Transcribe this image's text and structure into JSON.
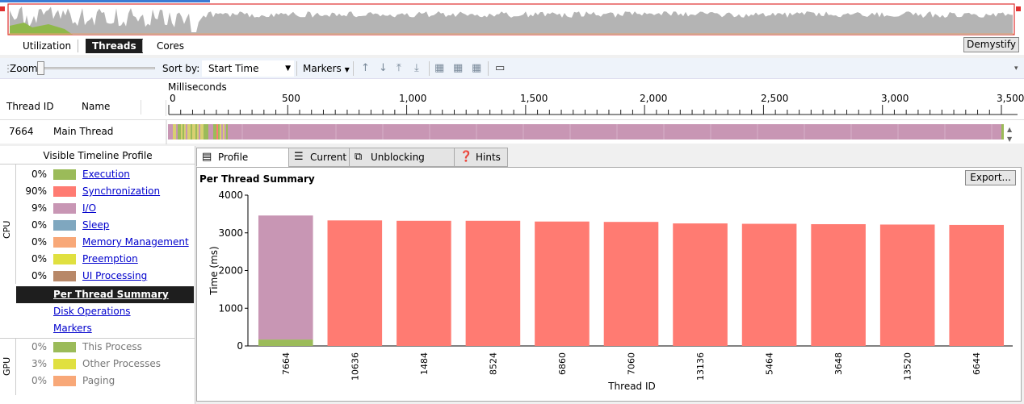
{
  "overview": {
    "accent": "#e03030"
  },
  "view_tabs": [
    {
      "label": "Utilization",
      "active": false
    },
    {
      "label": "Threads",
      "active": true
    },
    {
      "label": "Cores",
      "active": false
    }
  ],
  "demystify_label": "Demystify",
  "toolbar": {
    "zoom_label": "Zoom",
    "sort_label": "Sort by:",
    "sort_value": "Start Time",
    "markers_label": "Markers"
  },
  "ruler": {
    "unit_label": "Milliseconds",
    "ticks": [
      "0",
      "500",
      "1,000",
      "1,500",
      "2,000",
      "2,500",
      "3,000",
      "3,500"
    ],
    "tick_values": [
      0,
      500,
      1000,
      1500,
      2000,
      2500,
      3000,
      3500
    ],
    "max": 3500
  },
  "thread_table": {
    "col_id": "Thread ID",
    "col_name": "Name",
    "rows": [
      {
        "id": "7664",
        "name": "Main Thread"
      }
    ]
  },
  "left_pane": {
    "title": "Visible Timeline Profile",
    "cpu_label": "CPU",
    "gpu_label": "GPU",
    "cpu_rows": [
      {
        "pct": "0%",
        "label": "Execution",
        "color": "#9bbb59"
      },
      {
        "pct": "90%",
        "label": "Synchronization",
        "color": "#ff7b72"
      },
      {
        "pct": "9%",
        "label": "I/O",
        "color": "#c896b4"
      },
      {
        "pct": "0%",
        "label": "Sleep",
        "color": "#7fa7bf"
      },
      {
        "pct": "0%",
        "label": "Memory Management",
        "color": "#f8a878"
      },
      {
        "pct": "0%",
        "label": "Preemption",
        "color": "#e0e040"
      },
      {
        "pct": "0%",
        "label": "UI Processing",
        "color": "#b88868"
      }
    ],
    "nav": [
      {
        "label": "Per Thread Summary",
        "selected": true
      },
      {
        "label": "Disk Operations",
        "selected": false
      },
      {
        "label": "Markers",
        "selected": false
      }
    ],
    "gpu_rows": [
      {
        "pct": "0%",
        "label": "This Process",
        "color": "#9bbb59"
      },
      {
        "pct": "3%",
        "label": "Other Processes",
        "color": "#e0e040"
      },
      {
        "pct": "0%",
        "label": "Paging",
        "color": "#f8a878"
      }
    ]
  },
  "report_tabs": [
    {
      "label": "Profile Report",
      "icon": "report-icon",
      "active": true
    },
    {
      "label": "Current",
      "icon": "current-stack-icon",
      "active": false
    },
    {
      "label": "Unblocking Stack",
      "icon": "unblocking-stack-icon",
      "active": false
    },
    {
      "label": "Hints",
      "icon": "help-icon",
      "active": false
    }
  ],
  "report": {
    "title": "Per Thread Summary",
    "export_label": "Export..."
  },
  "chart_data": {
    "type": "bar",
    "title": "",
    "xlabel": "Thread ID",
    "ylabel": "Time (ms)",
    "ylim": [
      0,
      4000
    ],
    "yticks": [
      0,
      1000,
      2000,
      3000,
      4000
    ],
    "yticks_labels": [
      "0",
      "1000",
      "2000",
      "3000",
      "4000"
    ],
    "categories": [
      "7664",
      "10636",
      "1484",
      "8524",
      "6860",
      "7060",
      "13136",
      "5464",
      "3648",
      "13520",
      "6644"
    ],
    "series": [
      {
        "color": "#9bbb59",
        "values": [
          170,
          0,
          0,
          0,
          0,
          0,
          0,
          0,
          0,
          0,
          0
        ]
      },
      {
        "color": "#c896b4",
        "values": [
          3290,
          0,
          0,
          0,
          0,
          0,
          0,
          0,
          0,
          0,
          0
        ]
      },
      {
        "color": "#ff7b72",
        "values": [
          0,
          3330,
          3320,
          3320,
          3300,
          3290,
          3250,
          3240,
          3230,
          3220,
          3210
        ]
      }
    ]
  }
}
